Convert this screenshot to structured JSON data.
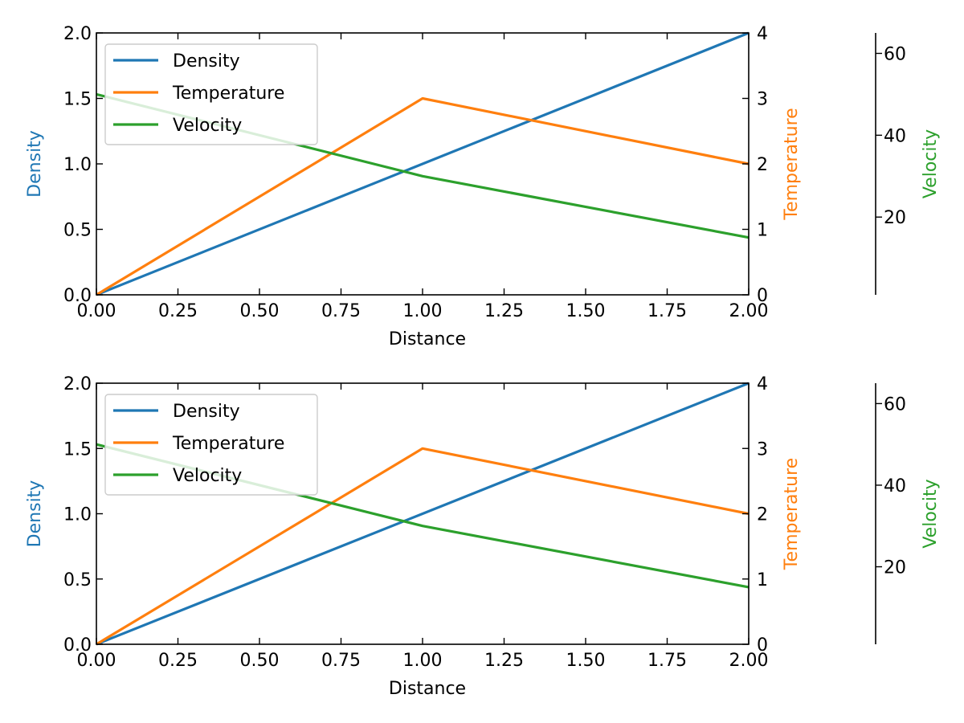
{
  "chart_data": [
    {
      "type": "line",
      "xlabel": "Distance",
      "xlim": [
        0,
        2
      ],
      "xticks": [
        "0.00",
        "0.25",
        "0.50",
        "0.75",
        "1.00",
        "1.25",
        "1.50",
        "1.75",
        "2.00"
      ],
      "axes": [
        {
          "id": "density",
          "label": "Density",
          "side": "left",
          "color": "#1f77b4",
          "ylim": [
            0,
            2
          ],
          "ticks": [
            "0.0",
            "0.5",
            "1.0",
            "1.5",
            "2.0"
          ]
        },
        {
          "id": "temperature",
          "label": "Temperature",
          "side": "right",
          "color": "#ff7f0e",
          "ylim": [
            0,
            4
          ],
          "ticks": [
            "0",
            "1",
            "2",
            "3",
            "4"
          ]
        },
        {
          "id": "velocity",
          "label": "Velocity",
          "side": "right-offset",
          "color": "#2ca02c",
          "ylim": [
            1,
            65
          ],
          "ticks": [
            "20",
            "40",
            "60"
          ]
        }
      ],
      "series": [
        {
          "name": "Density",
          "axis": "density",
          "color": "#1f77b4",
          "x": [
            0,
            1,
            2
          ],
          "y": [
            0,
            1,
            2
          ]
        },
        {
          "name": "Temperature",
          "axis": "temperature",
          "color": "#ff7f0e",
          "x": [
            0,
            1,
            2
          ],
          "y": [
            0,
            3,
            2
          ]
        },
        {
          "name": "Velocity",
          "axis": "velocity",
          "color": "#2ca02c",
          "x": [
            0,
            1,
            2
          ],
          "y": [
            50,
            30,
            15
          ]
        }
      ],
      "legend": {
        "position": "top-left",
        "entries": [
          "Density",
          "Temperature",
          "Velocity"
        ]
      }
    },
    {
      "type": "line",
      "xlabel": "Distance",
      "xlim": [
        0,
        2
      ],
      "xticks": [
        "0.00",
        "0.25",
        "0.50",
        "0.75",
        "1.00",
        "1.25",
        "1.50",
        "1.75",
        "2.00"
      ],
      "axes": [
        {
          "id": "density",
          "label": "Density",
          "side": "left",
          "color": "#1f77b4",
          "ylim": [
            0,
            2
          ],
          "ticks": [
            "0.0",
            "0.5",
            "1.0",
            "1.5",
            "2.0"
          ]
        },
        {
          "id": "temperature",
          "label": "Temperature",
          "side": "right",
          "color": "#ff7f0e",
          "ylim": [
            0,
            4
          ],
          "ticks": [
            "0",
            "1",
            "2",
            "3",
            "4"
          ]
        },
        {
          "id": "velocity",
          "label": "Velocity",
          "side": "right-offset",
          "color": "#2ca02c",
          "ylim": [
            1,
            65
          ],
          "ticks": [
            "20",
            "40",
            "60"
          ]
        }
      ],
      "series": [
        {
          "name": "Density",
          "axis": "density",
          "color": "#1f77b4",
          "x": [
            0,
            1,
            2
          ],
          "y": [
            0,
            1,
            2
          ]
        },
        {
          "name": "Temperature",
          "axis": "temperature",
          "color": "#ff7f0e",
          "x": [
            0,
            1,
            2
          ],
          "y": [
            0,
            3,
            2
          ]
        },
        {
          "name": "Velocity",
          "axis": "velocity",
          "color": "#2ca02c",
          "x": [
            0,
            1,
            2
          ],
          "y": [
            50,
            30,
            15
          ]
        }
      ],
      "legend": {
        "position": "top-left",
        "entries": [
          "Density",
          "Temperature",
          "Velocity"
        ]
      }
    }
  ]
}
